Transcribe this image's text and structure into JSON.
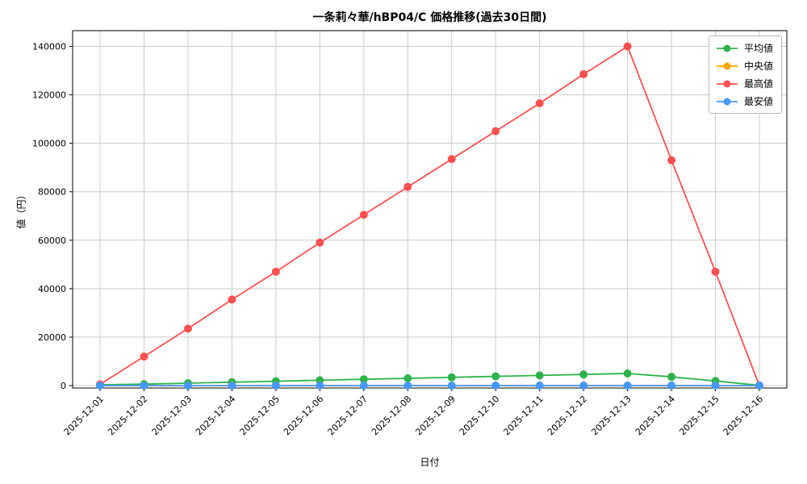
{
  "chart_data": {
    "type": "line",
    "title": "一条莉々華/hBP04/C 価格推移(過去30日間)",
    "xlabel": "日付",
    "ylabel": "値（円）",
    "categories": [
      "2025-12-01",
      "2025-12-02",
      "2025-12-03",
      "2025-12-04",
      "2025-12-05",
      "2025-12-06",
      "2025-12-07",
      "2025-12-08",
      "2025-12-09",
      "2025-12-10",
      "2025-12-11",
      "2025-12-12",
      "2025-12-13",
      "2025-12-14",
      "2025-12-15",
      "2025-12-16"
    ],
    "series": [
      {
        "name": "平均値",
        "color": "#2eb34b",
        "values": [
          300,
          600,
          1000,
          1400,
          1800,
          2200,
          2600,
          3000,
          3400,
          3800,
          4200,
          4600,
          5000,
          3600,
          1900,
          100
        ]
      },
      {
        "name": "中央値",
        "color": "#ffa500",
        "values": [
          0,
          0,
          0,
          0,
          0,
          0,
          0,
          0,
          0,
          0,
          0,
          0,
          0,
          0,
          0,
          0
        ]
      },
      {
        "name": "最高値",
        "color": "#ff5050",
        "values": [
          500,
          12000,
          23500,
          35500,
          47000,
          59000,
          70500,
          82000,
          93500,
          105000,
          116500,
          128500,
          140000,
          93000,
          47000,
          0
        ]
      },
      {
        "name": "最安値",
        "color": "#4499ff",
        "values": [
          0,
          0,
          0,
          0,
          0,
          0,
          0,
          0,
          0,
          0,
          0,
          0,
          0,
          0,
          0,
          0
        ]
      }
    ],
    "yticks": [
      0,
      20000,
      40000,
      60000,
      80000,
      100000,
      120000,
      140000
    ],
    "ylim": [
      -1000,
      146500
    ],
    "grid": true,
    "legend_position": "upper right",
    "grid_color": "#cccccc",
    "axis_color": "#000000"
  }
}
